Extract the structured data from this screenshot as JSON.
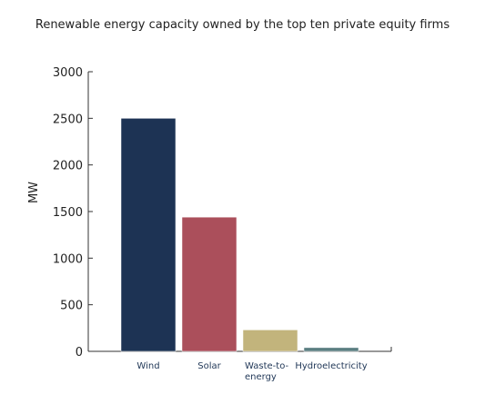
{
  "chart_data": {
    "type": "bar",
    "title": "Renewable energy capacity owned by the top ten private equity firms",
    "ylabel": "MW",
    "xlabel": "",
    "categories": [
      "Wind",
      "Solar",
      "Waste-to-energy",
      "Hydroelectricity"
    ],
    "category_label_lines": [
      [
        "Wind"
      ],
      [
        "Solar"
      ],
      [
        "Waste-to-",
        "energy"
      ],
      [
        "Hydroelectricity"
      ]
    ],
    "values": [
      2500,
      1440,
      230,
      40
    ],
    "colors": [
      "#1d3354",
      "#ab4f5b",
      "#c2b47c",
      "#5a7e81"
    ],
    "ylim": [
      0,
      3000
    ],
    "yticks": [
      0,
      500,
      1000,
      1500,
      2000,
      2500,
      3000
    ],
    "grid": false,
    "legend": "none"
  }
}
